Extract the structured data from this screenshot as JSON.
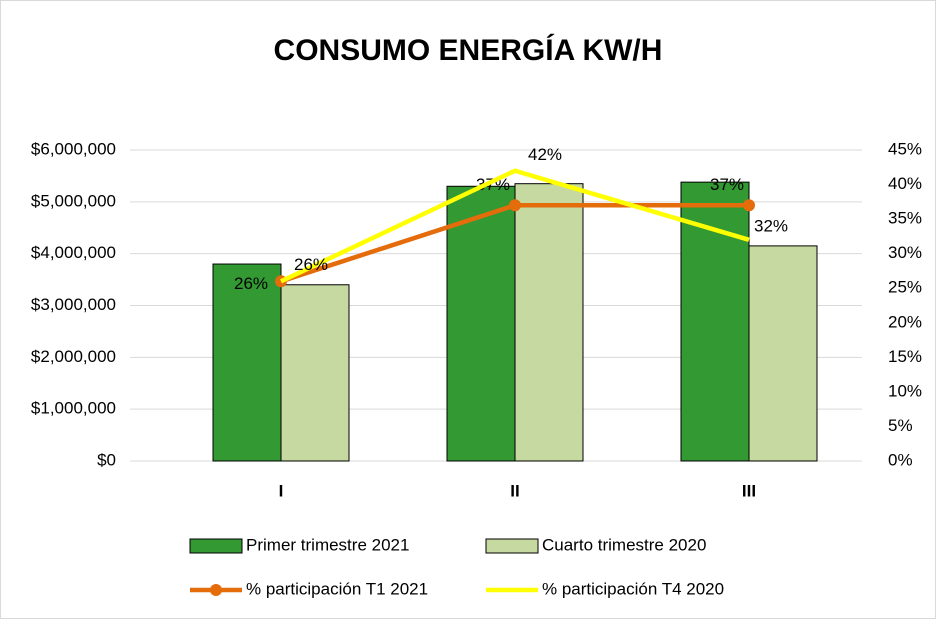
{
  "chart_data": {
    "type": "bar_line",
    "title": "CONSUMO ENERGÍA KW/H",
    "categories": [
      "I",
      "II",
      "III"
    ],
    "series": [
      {
        "name": "Primer trimestre 2021",
        "type": "bar",
        "color": "#339933",
        "values": [
          3800000,
          5300000,
          5380000
        ]
      },
      {
        "name": "Cuarto trimestre 2020",
        "type": "bar",
        "color": "#c5d9a0",
        "values": [
          3400000,
          5350000,
          4150000
        ]
      },
      {
        "name": "% participación T1 2021",
        "type": "line",
        "axis": "y2",
        "color": "#e46c0a",
        "values": [
          26,
          37,
          37
        ],
        "value_labels": [
          "26%",
          "37%",
          "37%"
        ]
      },
      {
        "name": "% participación T4 2020",
        "type": "line",
        "axis": "y2",
        "color": "#ffff00",
        "values": [
          26,
          42,
          32
        ],
        "value_labels": [
          "26%",
          "42%",
          "32%"
        ]
      }
    ],
    "ylim": [
      0,
      6000000
    ],
    "yticks": [
      {
        "value": 0,
        "label": "$0"
      },
      {
        "value": 1000000,
        "label": "$1,000,000"
      },
      {
        "value": 2000000,
        "label": "$2,000,000"
      },
      {
        "value": 3000000,
        "label": "$3,000,000"
      },
      {
        "value": 4000000,
        "label": "$4,000,000"
      },
      {
        "value": 5000000,
        "label": "$5,000,000"
      },
      {
        "value": 6000000,
        "label": "$6,000,000"
      }
    ],
    "y2lim": [
      0,
      45
    ],
    "y2ticks": [
      {
        "value": 0,
        "label": "0%"
      },
      {
        "value": 5,
        "label": "5%"
      },
      {
        "value": 10,
        "label": "10%"
      },
      {
        "value": 15,
        "label": "15%"
      },
      {
        "value": 20,
        "label": "20%"
      },
      {
        "value": 25,
        "label": "25%"
      },
      {
        "value": 30,
        "label": "30%"
      },
      {
        "value": 35,
        "label": "35%"
      },
      {
        "value": 40,
        "label": "40%"
      },
      {
        "value": 45,
        "label": "45%"
      }
    ],
    "grid": true
  }
}
